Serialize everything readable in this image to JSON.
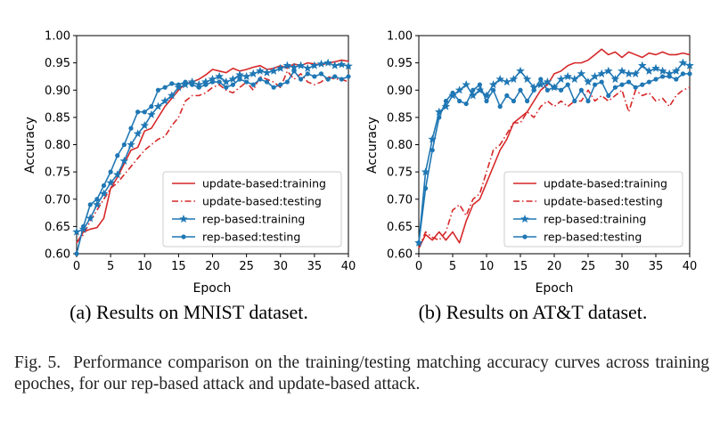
{
  "figure": {
    "caption_label": "Fig. 5.",
    "caption_text": "Performance comparison on the training/testing matching accuracy curves across training epoches, for our rep-based attack and update-based attack."
  },
  "colors": {
    "red": "#d62728",
    "blue": "#1f77b4"
  },
  "chart_data": [
    {
      "type": "line",
      "caption": "(a) Results on MNIST dataset.",
      "xlabel": "Epoch",
      "ylabel": "Accuracy",
      "xlim": [
        0,
        40
      ],
      "ylim": [
        0.6,
        1.0
      ],
      "xticks": [
        "0",
        "5",
        "10",
        "15",
        "20",
        "25",
        "30",
        "35",
        "40"
      ],
      "yticks": [
        "0.60",
        "0.65",
        "0.70",
        "0.75",
        "0.80",
        "0.85",
        "0.90",
        "0.95",
        "1.00"
      ],
      "legend_position": "lower-right",
      "x": [
        0,
        1,
        2,
        3,
        4,
        5,
        6,
        7,
        8,
        9,
        10,
        11,
        12,
        13,
        14,
        15,
        16,
        17,
        18,
        19,
        20,
        21,
        22,
        23,
        24,
        25,
        26,
        27,
        28,
        29,
        30,
        31,
        32,
        33,
        34,
        35,
        36,
        37,
        38,
        39,
        40
      ],
      "series": [
        {
          "name": "update-based:training",
          "color": "#d62728",
          "style": "solid",
          "marker": "none",
          "values": [
            0.62,
            0.64,
            0.645,
            0.648,
            0.665,
            0.72,
            0.74,
            0.765,
            0.79,
            0.795,
            0.825,
            0.83,
            0.85,
            0.87,
            0.885,
            0.9,
            0.912,
            0.915,
            0.92,
            0.928,
            0.938,
            0.935,
            0.932,
            0.94,
            0.935,
            0.938,
            0.942,
            0.945,
            0.938,
            0.94,
            0.945,
            0.94,
            0.948,
            0.945,
            0.95,
            0.948,
            0.946,
            0.95,
            0.952,
            0.955,
            0.953
          ]
        },
        {
          "name": "update-based:testing",
          "color": "#d62728",
          "style": "dashdot",
          "marker": "none",
          "values": [
            0.62,
            0.635,
            0.66,
            0.68,
            0.7,
            0.72,
            0.73,
            0.745,
            0.76,
            0.775,
            0.79,
            0.8,
            0.81,
            0.815,
            0.835,
            0.85,
            0.88,
            0.89,
            0.89,
            0.895,
            0.905,
            0.91,
            0.9,
            0.895,
            0.905,
            0.915,
            0.9,
            0.925,
            0.92,
            0.915,
            0.905,
            0.935,
            0.92,
            0.93,
            0.915,
            0.91,
            0.915,
            0.925,
            0.92,
            0.92,
            0.915
          ]
        },
        {
          "name": "rep-based:training",
          "color": "#1f77b4",
          "style": "solid",
          "marker": "star",
          "values": [
            0.64,
            0.645,
            0.665,
            0.69,
            0.71,
            0.73,
            0.745,
            0.77,
            0.8,
            0.82,
            0.835,
            0.855,
            0.87,
            0.88,
            0.89,
            0.905,
            0.91,
            0.915,
            0.91,
            0.915,
            0.92,
            0.925,
            0.915,
            0.92,
            0.928,
            0.925,
            0.93,
            0.935,
            0.932,
            0.935,
            0.94,
            0.945,
            0.942,
            0.945,
            0.94,
            0.945,
            0.948,
            0.95,
            0.945,
            0.947,
            0.944
          ]
        },
        {
          "name": "rep-based:testing",
          "color": "#1f77b4",
          "style": "solid",
          "marker": "dot",
          "values": [
            0.6,
            0.65,
            0.69,
            0.7,
            0.725,
            0.75,
            0.78,
            0.8,
            0.83,
            0.86,
            0.86,
            0.87,
            0.9,
            0.905,
            0.912,
            0.91,
            0.915,
            0.91,
            0.905,
            0.91,
            0.915,
            0.915,
            0.905,
            0.91,
            0.92,
            0.915,
            0.91,
            0.92,
            0.915,
            0.905,
            0.91,
            0.915,
            0.935,
            0.92,
            0.93,
            0.925,
            0.93,
            0.92,
            0.925,
            0.92,
            0.925
          ]
        }
      ]
    },
    {
      "type": "line",
      "caption": "(b) Results on AT&T dataset.",
      "xlabel": "Epoch",
      "ylabel": "Accuracy",
      "xlim": [
        0,
        40
      ],
      "ylim": [
        0.6,
        1.0
      ],
      "xticks": [
        "0",
        "5",
        "10",
        "15",
        "20",
        "25",
        "30",
        "35",
        "40"
      ],
      "yticks": [
        "0.60",
        "0.65",
        "0.70",
        "0.75",
        "0.80",
        "0.85",
        "0.90",
        "0.95",
        "1.00"
      ],
      "legend_position": "lower-right",
      "x": [
        0,
        1,
        2,
        3,
        4,
        5,
        6,
        7,
        8,
        9,
        10,
        11,
        12,
        13,
        14,
        15,
        16,
        17,
        18,
        19,
        20,
        21,
        22,
        23,
        24,
        25,
        26,
        27,
        28,
        29,
        30,
        31,
        32,
        33,
        34,
        35,
        36,
        37,
        38,
        39,
        40
      ],
      "series": [
        {
          "name": "update-based:training",
          "color": "#d62728",
          "style": "solid",
          "marker": "none",
          "values": [
            0.61,
            0.635,
            0.625,
            0.64,
            0.625,
            0.64,
            0.62,
            0.66,
            0.69,
            0.7,
            0.73,
            0.76,
            0.79,
            0.81,
            0.84,
            0.85,
            0.86,
            0.88,
            0.9,
            0.91,
            0.93,
            0.935,
            0.945,
            0.95,
            0.95,
            0.955,
            0.965,
            0.975,
            0.965,
            0.97,
            0.96,
            0.97,
            0.965,
            0.96,
            0.968,
            0.965,
            0.97,
            0.965,
            0.965,
            0.968,
            0.965
          ]
        },
        {
          "name": "update-based:testing",
          "color": "#d62728",
          "style": "dashdot",
          "marker": "none",
          "values": [
            0.61,
            0.64,
            0.63,
            0.625,
            0.64,
            0.68,
            0.69,
            0.67,
            0.7,
            0.71,
            0.75,
            0.79,
            0.8,
            0.82,
            0.84,
            0.84,
            0.86,
            0.85,
            0.87,
            0.88,
            0.87,
            0.88,
            0.87,
            0.88,
            0.88,
            0.9,
            0.88,
            0.89,
            0.88,
            0.89,
            0.9,
            0.86,
            0.9,
            0.89,
            0.895,
            0.88,
            0.885,
            0.87,
            0.89,
            0.9,
            0.905
          ]
        },
        {
          "name": "rep-based:training",
          "color": "#1f77b4",
          "style": "solid",
          "marker": "star",
          "values": [
            0.62,
            0.75,
            0.81,
            0.86,
            0.87,
            0.89,
            0.9,
            0.91,
            0.89,
            0.9,
            0.89,
            0.91,
            0.92,
            0.915,
            0.92,
            0.935,
            0.92,
            0.905,
            0.91,
            0.915,
            0.905,
            0.92,
            0.925,
            0.92,
            0.93,
            0.915,
            0.925,
            0.93,
            0.935,
            0.92,
            0.935,
            0.93,
            0.93,
            0.945,
            0.935,
            0.94,
            0.935,
            0.93,
            0.935,
            0.95,
            0.945
          ]
        },
        {
          "name": "rep-based:testing",
          "color": "#1f77b4",
          "style": "solid",
          "marker": "dot",
          "values": [
            0.62,
            0.72,
            0.79,
            0.85,
            0.88,
            0.895,
            0.88,
            0.875,
            0.9,
            0.91,
            0.88,
            0.9,
            0.87,
            0.89,
            0.88,
            0.9,
            0.88,
            0.9,
            0.92,
            0.9,
            0.905,
            0.9,
            0.91,
            0.88,
            0.9,
            0.88,
            0.91,
            0.915,
            0.89,
            0.905,
            0.91,
            0.915,
            0.905,
            0.91,
            0.915,
            0.92,
            0.925,
            0.925,
            0.92,
            0.93,
            0.93
          ]
        }
      ]
    }
  ]
}
